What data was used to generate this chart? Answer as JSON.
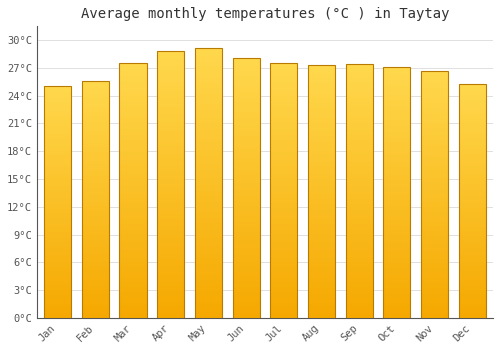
{
  "title": "Average monthly temperatures (°C ) in Taytay",
  "months": [
    "Jan",
    "Feb",
    "Mar",
    "Apr",
    "May",
    "Jun",
    "Jul",
    "Aug",
    "Sep",
    "Oct",
    "Nov",
    "Dec"
  ],
  "values": [
    25.1,
    25.6,
    27.5,
    28.8,
    29.2,
    28.1,
    27.5,
    27.3,
    27.4,
    27.1,
    26.7,
    25.3
  ],
  "bar_color_bottom": "#F5A800",
  "bar_color_top": "#FFD84D",
  "edge_color": "#B87A00",
  "background_color": "#FFFFFF",
  "grid_color": "#E0E0E0",
  "yticks": [
    0,
    3,
    6,
    9,
    12,
    15,
    18,
    21,
    24,
    27,
    30
  ],
  "ylim": [
    0,
    31.5
  ],
  "title_fontsize": 10,
  "tick_fontsize": 7.5,
  "title_color": "#333333",
  "tick_color": "#555555",
  "font_family": "monospace"
}
